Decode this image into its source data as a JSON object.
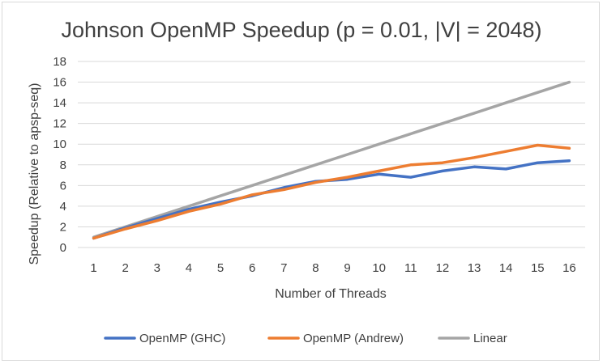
{
  "chart_data": {
    "type": "line",
    "title": "Johnson OpenMP Speedup (p = 0.01, |V| = 2048)",
    "xlabel": "Number of Threads",
    "ylabel": "Speedup (Relative to apsp-seq)",
    "categories": [
      "1",
      "2",
      "3",
      "4",
      "5",
      "6",
      "7",
      "8",
      "9",
      "10",
      "11",
      "12",
      "13",
      "14",
      "15",
      "16"
    ],
    "ylim": [
      0,
      18
    ],
    "yticks": [
      0,
      2,
      4,
      6,
      8,
      10,
      12,
      14,
      16,
      18
    ],
    "grid": true,
    "legend_position": "bottom",
    "series": [
      {
        "name": "OpenMP (GHC)",
        "color": "#4472C4",
        "values": [
          0.9,
          1.9,
          2.8,
          3.7,
          4.4,
          5.0,
          5.8,
          6.4,
          6.6,
          7.1,
          6.8,
          7.4,
          7.8,
          7.6,
          8.2,
          8.4
        ]
      },
      {
        "name": "OpenMP (Andrew)",
        "color": "#ED7D31",
        "values": [
          0.9,
          1.8,
          2.6,
          3.5,
          4.2,
          5.1,
          5.6,
          6.3,
          6.8,
          7.4,
          8.0,
          8.2,
          8.7,
          9.3,
          9.9,
          9.6
        ]
      },
      {
        "name": "Linear",
        "color": "#A5A5A5",
        "values": [
          1,
          2,
          3,
          4,
          5,
          6,
          7,
          8,
          9,
          10,
          11,
          12,
          13,
          14,
          15,
          16
        ]
      }
    ]
  }
}
